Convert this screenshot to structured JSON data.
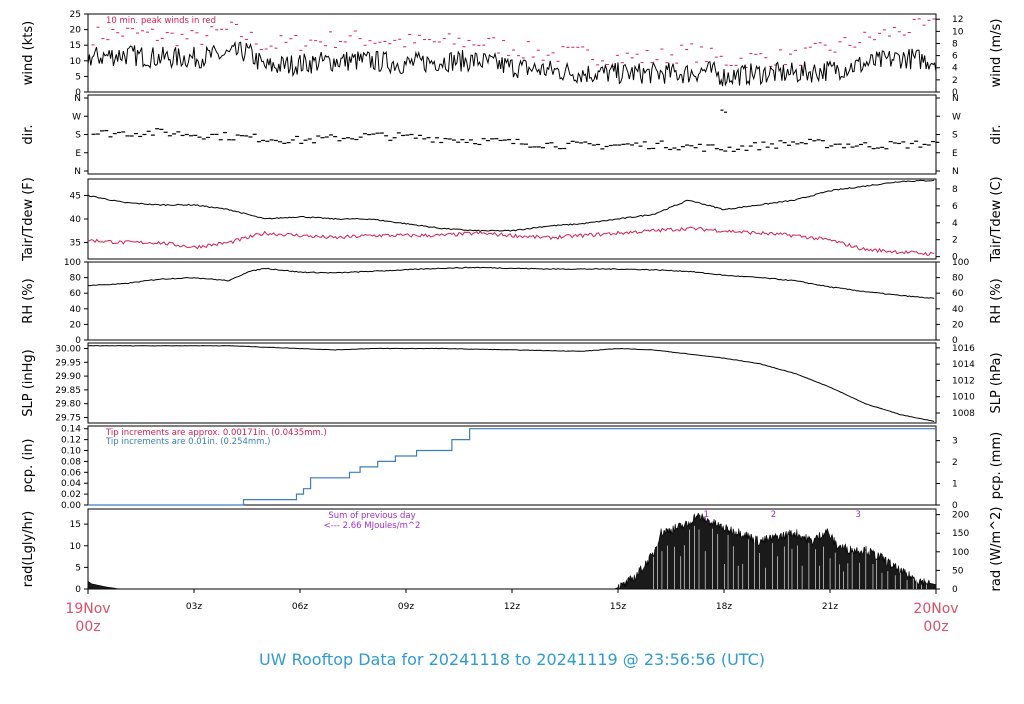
{
  "footer": {
    "title": "UW Rooftop Data for 20241118  to  20241119 @ 23:56:56  (UTC)",
    "start_day": "19Nov",
    "start_hour": "00z",
    "end_day": "20Nov",
    "end_hour": "00z"
  },
  "colors": {
    "primary_series": "#000000",
    "secondary_series": "#d62050",
    "precip_line": "#3a7ebf",
    "precip_note_red": "#d62050",
    "precip_note_blue": "#3a7ebf",
    "radiation_annotation": "#9b30d9",
    "footer_text": "#2f9bd6",
    "date_labels": "#d9506a"
  },
  "time_axis": {
    "ticks": [
      "03z",
      "06z",
      "09z",
      "12z",
      "15z",
      "18z",
      "21z"
    ],
    "tick_hours": [
      3,
      6,
      9,
      12,
      15,
      18,
      21
    ],
    "range_hours": [
      0,
      24
    ]
  },
  "chart_data": [
    {
      "type": "line",
      "id": "wind",
      "ylabel": "wind (kts)",
      "ylabel_right": "wind (m/s)",
      "ylim": [
        0,
        25
      ],
      "yticks": [
        "0",
        "5",
        "10",
        "15",
        "20",
        "25"
      ],
      "yticks_right": [
        "0",
        "2",
        "4",
        "6",
        "8",
        "10",
        "12"
      ],
      "annotation": "10 min. peak winds in red",
      "series": [
        {
          "values_hours": [
            0,
            1,
            2,
            3,
            4,
            4.5,
            5,
            6,
            7,
            8,
            9,
            10,
            11,
            12,
            13,
            14,
            15,
            16,
            17,
            17.5,
            18,
            19,
            20,
            21,
            22,
            23,
            24
          ],
          "values": [
            11,
            12,
            11,
            11,
            12,
            13,
            8,
            9,
            10,
            10,
            9,
            10,
            10,
            8,
            7,
            6,
            6,
            6,
            6,
            7,
            5,
            6,
            6,
            7,
            9,
            11,
            10
          ]
        },
        {
          "values_hours": [
            0,
            1,
            2,
            3,
            4,
            5,
            6,
            7,
            8,
            9,
            10,
            11,
            12,
            13,
            14,
            15,
            16,
            17,
            18,
            19,
            20,
            21,
            22,
            23,
            24
          ],
          "values": [
            18,
            19,
            18,
            17,
            20,
            15,
            16,
            17,
            17,
            16,
            16,
            16,
            14,
            12,
            12,
            11,
            11,
            13,
            10,
            11,
            11,
            14,
            17,
            20,
            21
          ]
        }
      ]
    },
    {
      "type": "scatter",
      "id": "direction",
      "ylabel": "dir.",
      "ylabel_right": "dir.",
      "yticks": [
        "N",
        "E",
        "S",
        "W",
        "N"
      ],
      "yticks_right": [
        "N",
        "E",
        "S",
        "W",
        "N"
      ],
      "trend_hours": [
        0,
        2,
        4,
        6,
        8,
        10,
        12,
        14,
        16,
        18,
        20,
        22,
        24
      ],
      "trend_degrees": [
        185,
        190,
        170,
        150,
        175,
        160,
        140,
        125,
        130,
        110,
        140,
        125,
        135
      ]
    },
    {
      "type": "line",
      "id": "temperature",
      "ylabel": "Tair/Tdew (F)",
      "ylabel_right": "Tair/Tdew (C)",
      "ylim": [
        31.5,
        48.5
      ],
      "yticks": [
        "35",
        "40",
        "45"
      ],
      "yticks_right": [
        "0",
        "2",
        "4",
        "6",
        "8"
      ],
      "series": [
        {
          "name": "Tair",
          "values_hours": [
            0,
            1,
            2,
            3,
            4,
            5,
            6,
            7,
            8,
            9,
            10,
            11,
            12,
            13,
            14,
            15,
            16,
            17,
            17.5,
            18,
            19,
            20,
            21,
            22,
            23,
            24
          ],
          "values": [
            45,
            43.5,
            43,
            43,
            42,
            40,
            40.5,
            40,
            40,
            39,
            38,
            37.5,
            37.5,
            38.5,
            39,
            40,
            41,
            44,
            43,
            42,
            43,
            44,
            46,
            47,
            48,
            48.2
          ]
        },
        {
          "name": "Tdew",
          "values_hours": [
            0,
            1,
            2,
            3,
            4,
            5,
            6,
            7,
            8,
            9,
            10,
            11,
            12,
            13,
            14,
            15,
            16,
            17,
            18,
            19,
            20,
            21,
            22,
            23,
            24
          ],
          "values": [
            35.5,
            35,
            35,
            34,
            35,
            37,
            36.5,
            36,
            36.5,
            36.5,
            36.5,
            37,
            36.5,
            36,
            36.5,
            37,
            37.5,
            38,
            37.5,
            37,
            36.5,
            35.5,
            33.5,
            33,
            32.5
          ]
        }
      ]
    },
    {
      "type": "line",
      "id": "humidity",
      "ylabel": "RH (%)",
      "ylabel_right": "RH (%)",
      "ylim": [
        0,
        100
      ],
      "yticks": [
        "0",
        "20",
        "40",
        "60",
        "80",
        "100"
      ],
      "yticks_right": [
        "0",
        "20",
        "40",
        "60",
        "80",
        "100"
      ],
      "series": [
        {
          "values_hours": [
            0,
            1,
            2,
            3,
            4,
            4.5,
            5,
            6,
            7,
            8,
            9,
            10,
            11,
            12,
            13,
            14,
            15,
            16,
            17,
            18,
            19,
            20,
            21,
            22,
            23,
            24
          ],
          "values": [
            70,
            72,
            78,
            80,
            76,
            87,
            92,
            87,
            86,
            88,
            90,
            92,
            93,
            92,
            91,
            91,
            91,
            90,
            88,
            83,
            80,
            76,
            68,
            62,
            57,
            53
          ]
        }
      ]
    },
    {
      "type": "line",
      "id": "pressure",
      "ylabel": "SLP (inHg)",
      "ylabel_right": "SLP (hPa)",
      "ylim": [
        29.73,
        30.02
      ],
      "yticks": [
        "29.75",
        "29.80",
        "29.85",
        "29.90",
        "29.95",
        "30.00"
      ],
      "yticks_right": [
        "1008",
        "1010",
        "1012",
        "1014",
        "1016"
      ],
      "series": [
        {
          "values_hours": [
            0,
            2,
            4,
            6,
            7,
            8,
            10,
            12,
            14,
            15,
            16,
            17,
            18,
            19,
            20,
            21,
            22,
            23,
            24
          ],
          "values": [
            30.01,
            30.01,
            30.01,
            30.0,
            29.995,
            30.0,
            30.0,
            29.995,
            29.99,
            30.0,
            29.995,
            29.98,
            29.965,
            29.945,
            29.91,
            29.86,
            29.8,
            29.76,
            29.735
          ]
        }
      ]
    },
    {
      "type": "line",
      "id": "precipitation",
      "ylabel": "pcp. (in)",
      "ylabel_right": "pcp. (mm)",
      "ylim": [
        0,
        0.145
      ],
      "yticks": [
        "0.00",
        "0.02",
        "0.04",
        "0.06",
        "0.08",
        "0.10",
        "0.12",
        "0.14"
      ],
      "yticks_right": [
        "0",
        "1",
        "2",
        "3"
      ],
      "notes": [
        "Tip increments are approx. 0.00171in. (0.0435mm.)",
        "Tip increments are 0.01in. (0.254mm.)"
      ],
      "series": [
        {
          "values_hours": [
            0,
            4.4,
            4.4,
            5.9,
            5.9,
            6.1,
            6.1,
            6.3,
            6.3,
            7.4,
            7.4,
            7.7,
            7.7,
            8.2,
            8.2,
            8.7,
            8.7,
            9.3,
            9.3,
            10.3,
            10.3,
            10.8,
            10.8,
            24
          ],
          "values": [
            0,
            0,
            0.01,
            0.01,
            0.02,
            0.02,
            0.03,
            0.03,
            0.05,
            0.05,
            0.06,
            0.06,
            0.07,
            0.07,
            0.08,
            0.08,
            0.09,
            0.09,
            0.1,
            0.1,
            0.12,
            0.12,
            0.14,
            0.14
          ]
        }
      ]
    },
    {
      "type": "area",
      "id": "radiation",
      "ylabel": "rad(Lgly/hr)",
      "ylabel_right": "rad (W/m^2)",
      "ylim": [
        0,
        18.5
      ],
      "yticks": [
        "0",
        "5",
        "10",
        "15"
      ],
      "yticks_right": [
        "0",
        "50",
        "100",
        "150",
        "200"
      ],
      "annotation_lines": [
        "Sum of previous day",
        "<--- 2.66 MJoules/m^2"
      ],
      "markers": [
        "1",
        "2",
        "3"
      ],
      "marker_hours": [
        17.5,
        19.4,
        21.8
      ],
      "values_hours": [
        0,
        0.1,
        0.5,
        0.9,
        14.9,
        15.2,
        15.5,
        16,
        16.2,
        16.6,
        17,
        17.2,
        17.5,
        18,
        18.5,
        19,
        19.5,
        20,
        20.5,
        20.9,
        21.2,
        21.6,
        22,
        22.5,
        23,
        23.5,
        24
      ],
      "values": [
        1.8,
        1.2,
        0.5,
        0,
        0,
        1,
        3,
        8,
        13,
        14,
        15,
        17,
        16,
        14,
        13,
        11,
        12,
        13,
        11,
        13.5,
        10,
        9,
        9,
        7,
        4,
        2,
        1
      ]
    }
  ]
}
